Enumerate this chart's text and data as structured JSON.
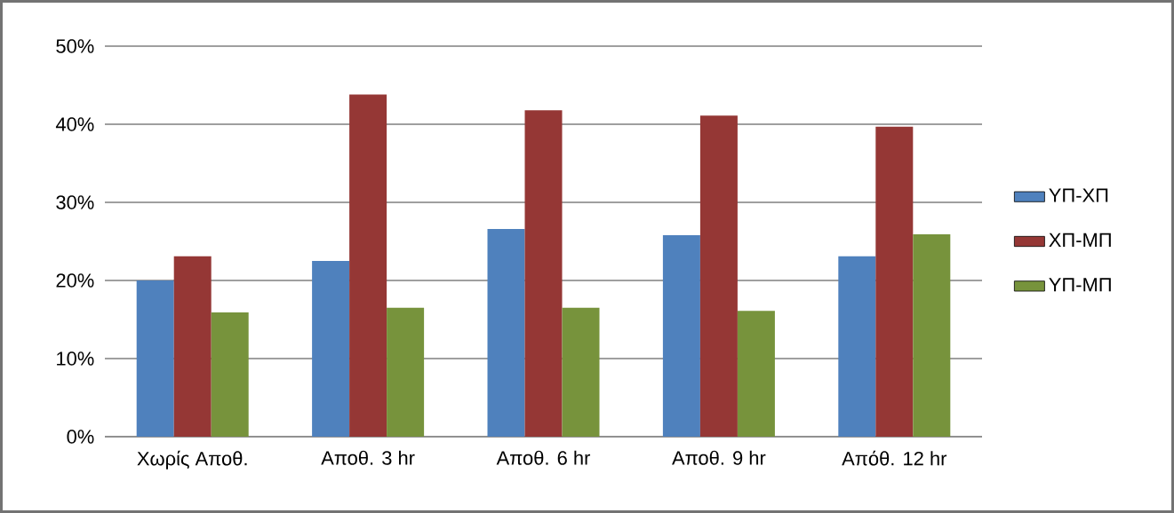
{
  "chart_data": {
    "type": "bar",
    "categories": [
      "Χωρίς Αποθ.",
      "Αποθ. 3 hr",
      "Αποθ. 6 hr",
      "Αποθ. 9 hr",
      "Απόθ. 12 hr"
    ],
    "series": [
      {
        "name": "ΥΠ-ΧΠ",
        "color": "#4f81bd",
        "values": [
          20.0,
          22.5,
          26.6,
          25.8,
          23.1
        ]
      },
      {
        "name": "ΧΠ-ΜΠ",
        "color": "#953735",
        "values": [
          23.1,
          43.8,
          41.8,
          41.1,
          39.7
        ]
      },
      {
        "name": "ΥΠ-ΜΠ",
        "color": "#77933c",
        "values": [
          15.9,
          16.5,
          16.5,
          16.1,
          25.9
        ]
      }
    ],
    "ylim": [
      0,
      50
    ],
    "yticks": [
      {
        "value": 0,
        "label": "0%"
      },
      {
        "value": 10,
        "label": "10%"
      },
      {
        "value": 20,
        "label": "20%"
      },
      {
        "value": 30,
        "label": "30%"
      },
      {
        "value": 40,
        "label": "40%"
      },
      {
        "value": 50,
        "label": "50%"
      }
    ],
    "grid": "y",
    "legend": "right"
  }
}
